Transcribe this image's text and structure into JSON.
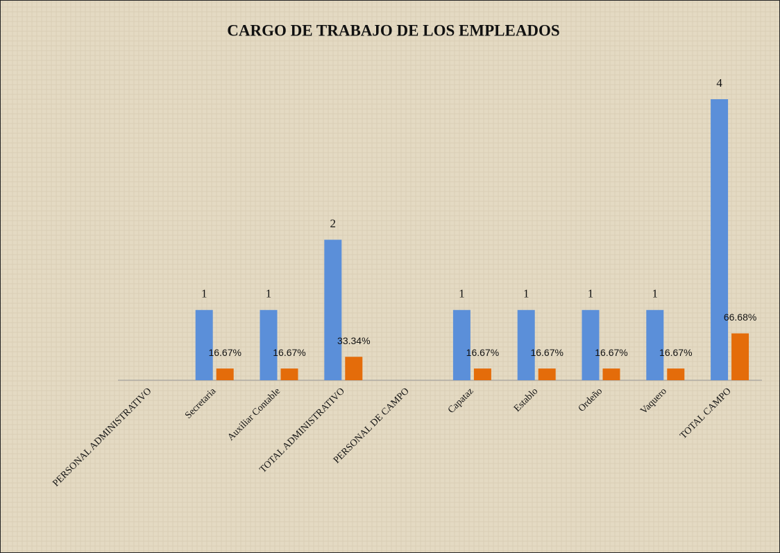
{
  "chart_data": {
    "type": "bar",
    "title": "CARGO DE TRABAJO DE LOS EMPLEADOS",
    "categories": [
      "PERSONAL ADMINISTRATIVO",
      "Secretaria",
      "Auxiliar Contable",
      "TOTAL ADMINISTRATIVO",
      "PERSONAL DE CAMPO",
      "Capataz",
      "Establo",
      "Ordeño",
      "Vaquero",
      "TOTAL CAMPO"
    ],
    "series": [
      {
        "color": "#5b8fd9",
        "values": [
          null,
          1,
          1,
          2,
          null,
          1,
          1,
          1,
          1,
          4
        ]
      },
      {
        "color": "#e46c0a",
        "axis": "y2",
        "values": [
          null,
          16.67,
          16.67,
          33.34,
          null,
          16.67,
          16.67,
          16.67,
          16.67,
          66.68
        ],
        "value_labels": [
          null,
          "16.67%",
          "16.67%",
          "33.34%",
          null,
          "16.67%",
          "16.67%",
          "16.67%",
          "16.67%",
          "66.68%"
        ]
      }
    ],
    "ylim": [
      0,
      4
    ],
    "y2lim": [
      0,
      400
    ]
  }
}
